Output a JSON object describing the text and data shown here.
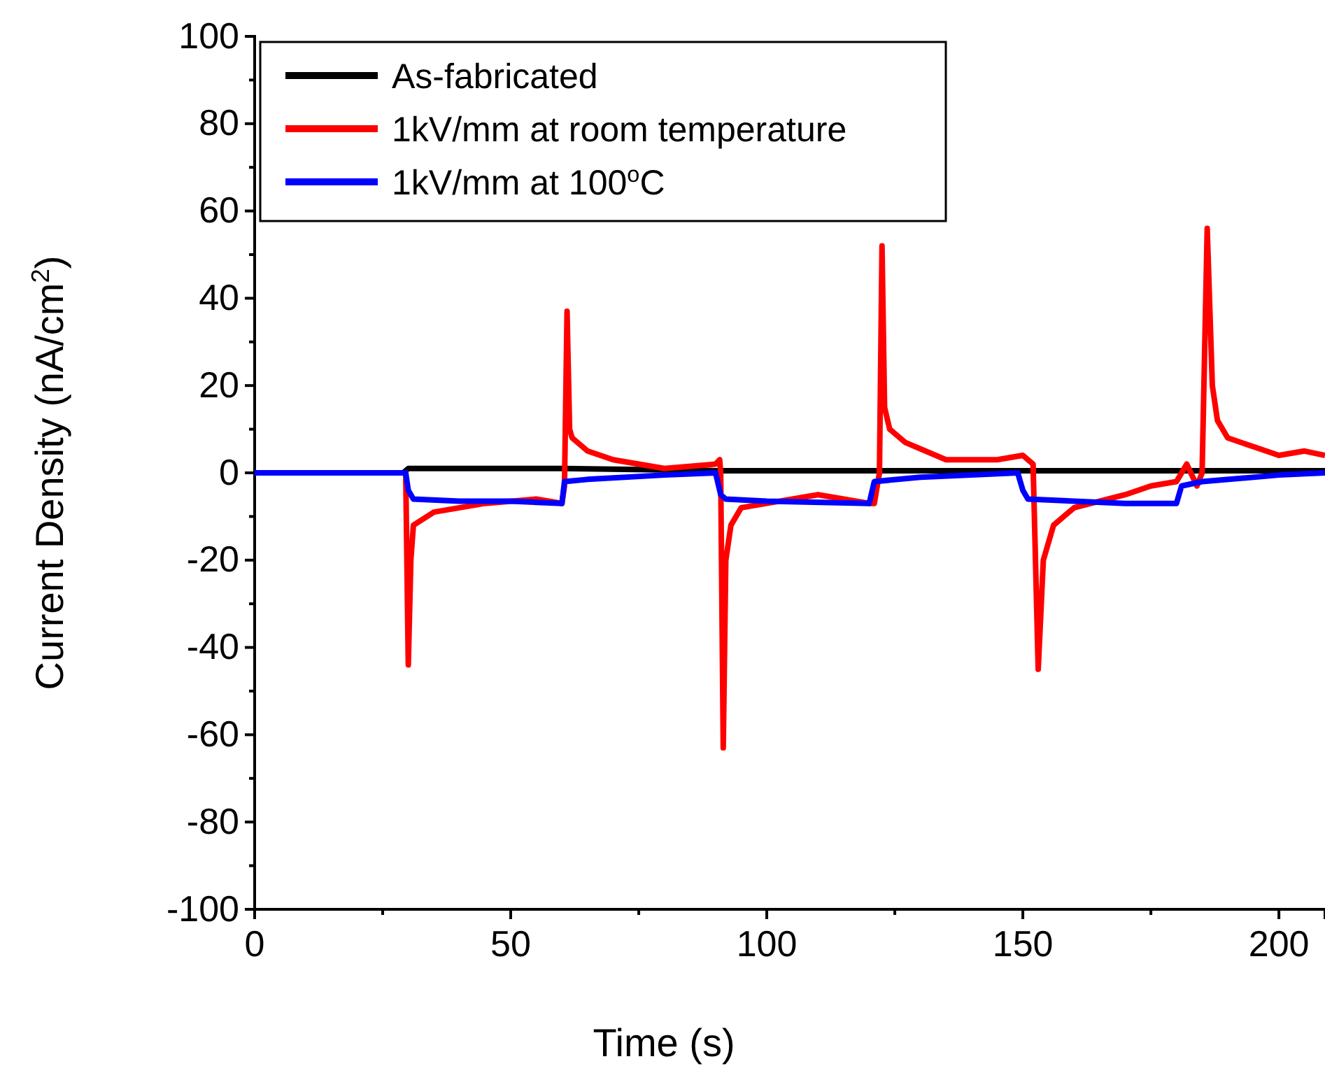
{
  "chart_data": {
    "type": "line",
    "xlabel": "Time (s)",
    "ylabel": "Current Density (nA/cm$^{2}$)",
    "xlim": [
      0,
      209
    ],
    "ylim": [
      -100,
      100
    ],
    "xticks": [
      0,
      50,
      100,
      150,
      200
    ],
    "yticks": [
      -100,
      -80,
      -60,
      -40,
      -20,
      0,
      20,
      40,
      60,
      80,
      100
    ],
    "grid": false,
    "legend": "top left",
    "marker": "none",
    "line_style": "solid",
    "series": [
      {
        "name": "As-fabricated",
        "color": "#000000",
        "x": [
          0,
          29,
          30,
          60,
          90,
          120,
          150,
          180,
          209
        ],
        "values": [
          0,
          0,
          1,
          1,
          0.5,
          0.5,
          0.5,
          0.5,
          0.5
        ]
      },
      {
        "name": "1kV/mm at room temperature",
        "color": "#ff0000",
        "x": [
          0,
          29.5,
          30,
          30.5,
          31,
          35,
          45,
          55,
          60,
          60.5,
          61,
          61.5,
          62,
          65,
          70,
          80,
          90,
          90.8,
          91,
          91.5,
          92,
          93,
          95,
          100,
          110,
          120,
          121,
          122,
          122.5,
          123,
          124,
          127,
          135,
          145,
          150,
          152,
          153,
          154,
          156,
          160,
          170,
          175,
          180,
          182,
          184,
          185,
          186,
          187,
          188,
          190,
          195,
          200,
          205,
          209
        ],
        "values": [
          0,
          0,
          -44,
          -20,
          -12,
          -9,
          -7,
          -6,
          -7,
          -3,
          37,
          10,
          8,
          5,
          3,
          1,
          2,
          3,
          0,
          -63,
          -20,
          -12,
          -8,
          -7,
          -5,
          -7,
          -7,
          0,
          52,
          15,
          10,
          7,
          3,
          3,
          4,
          2,
          -45,
          -20,
          -12,
          -8,
          -5,
          -3,
          -2,
          2,
          -3,
          0,
          56,
          20,
          12,
          8,
          6,
          4,
          5,
          4
        ]
      },
      {
        "name": "1kV/mm at 100$^{o}$C",
        "color": "#0000ff",
        "x": [
          0,
          29.5,
          30,
          31,
          40,
          50,
          60,
          60.5,
          65,
          80,
          90,
          91,
          92,
          100,
          120,
          121,
          130,
          149,
          150,
          151,
          170,
          180,
          181,
          185,
          200,
          209
        ],
        "values": [
          0,
          0,
          -4,
          -6,
          -6.5,
          -6.5,
          -7,
          -2,
          -1.5,
          -0.5,
          0,
          -5,
          -6,
          -6.5,
          -7,
          -2,
          -1,
          0,
          -4,
          -6,
          -7,
          -7,
          -3,
          -2,
          -0.5,
          0
        ]
      }
    ]
  }
}
